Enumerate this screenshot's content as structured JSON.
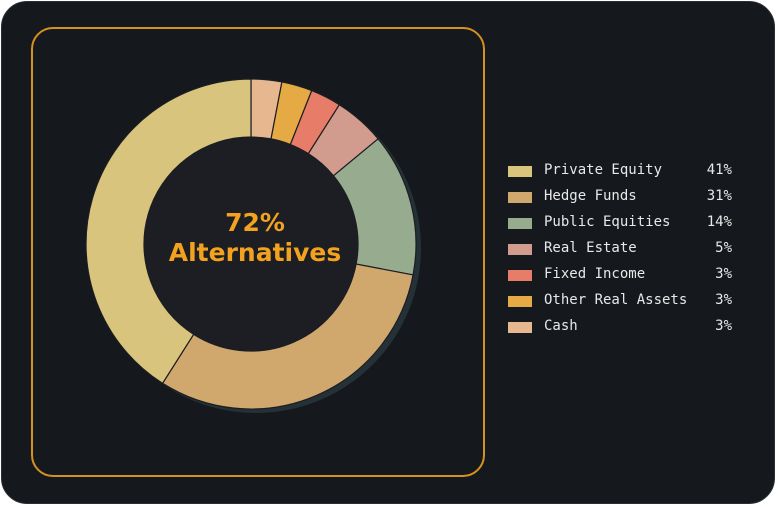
{
  "chart_data": {
    "type": "pie",
    "style": "donut",
    "center_label": [
      "72%",
      "Alternatives"
    ],
    "categories": [
      "Private Equity",
      "Hedge Funds",
      "Public Equities",
      "Real Estate",
      "Fixed Income",
      "Other Real Assets",
      "Cash"
    ],
    "values": [
      41,
      31,
      14,
      5,
      3,
      3,
      3
    ],
    "value_labels": [
      "41%",
      "31%",
      "14%",
      "5%",
      "3%",
      "3%",
      "3%"
    ],
    "colors": [
      "#d8c47c",
      "#d0a86e",
      "#97ab8e",
      "#d19b8e",
      "#e77c69",
      "#e6aa44",
      "#e7b88f"
    ],
    "legend_position": "right",
    "accent_color": "#f2a21f",
    "frame_color": "#d5921e",
    "background_color": "#15181d"
  }
}
